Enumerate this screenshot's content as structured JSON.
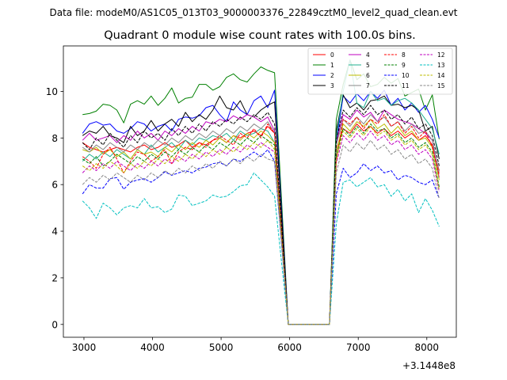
{
  "figure": {
    "suptitle": "Data file: modeM0/AS1C05_013T03_9000003376_22849cztM0_level2_quad_clean.evt"
  },
  "chart_data": {
    "type": "line",
    "title": "Quadrant 0 module wise count rates with 100.0s bins.",
    "xlabel": "",
    "ylabel": "",
    "x_offset_label": "+3.1448e8",
    "xlim": [
      2700,
      8430
    ],
    "ylim": [
      -0.55,
      11.95
    ],
    "xticks": [
      3000,
      4000,
      5000,
      6000,
      7000,
      8000
    ],
    "yticks": [
      0,
      2,
      4,
      6,
      8,
      10
    ],
    "grid": false,
    "legend_position": "top-right",
    "x": [
      2980,
      3080,
      3180,
      3280,
      3380,
      3480,
      3580,
      3680,
      3780,
      3880,
      3980,
      4080,
      4180,
      4280,
      4380,
      4480,
      4580,
      4680,
      4780,
      4880,
      4980,
      5080,
      5180,
      5280,
      5380,
      5480,
      5580,
      5680,
      5780,
      5880,
      5980,
      6080,
      6180,
      6280,
      6380,
      6480,
      6580,
      6680,
      6780,
      6880,
      6980,
      7080,
      7180,
      7280,
      7380,
      7480,
      7580,
      7680,
      7780,
      7880,
      7980,
      8080,
      8180
    ],
    "series": [
      {
        "name": "0",
        "color": "#ff0000",
        "style": "solid",
        "values": [
          7.8,
          7.6,
          7.5,
          7.4,
          7.5,
          7.6,
          7.5,
          7.4,
          7.6,
          7.7,
          7.5,
          7.6,
          7.8,
          7.6,
          7.7,
          7.9,
          7.6,
          7.8,
          7.7,
          7.9,
          8.0,
          7.8,
          8.1,
          8.0,
          8.2,
          8.3,
          8.1,
          8.5,
          8.2,
          4.1,
          0,
          0,
          0,
          0,
          0,
          0,
          0,
          7.5,
          8.4,
          8.2,
          8.6,
          8.3,
          8.5,
          8.2,
          8.4,
          8.1,
          8.3,
          8.0,
          8.2,
          7.9,
          8.1,
          7.7,
          6.6
        ]
      },
      {
        "name": "1",
        "color": "#008000",
        "style": "solid",
        "values": [
          9.0,
          9.05,
          9.15,
          9.45,
          9.4,
          9.2,
          8.65,
          9.45,
          9.6,
          9.45,
          9.8,
          9.4,
          9.7,
          10.15,
          9.5,
          9.7,
          9.75,
          10.3,
          10.3,
          10.05,
          10.2,
          10.6,
          10.75,
          10.5,
          10.4,
          10.75,
          11.05,
          10.9,
          10.8,
          5.4,
          0,
          0,
          0,
          0,
          0,
          0,
          0,
          8.8,
          10.3,
          11.35,
          10.5,
          10.75,
          10.2,
          10.3,
          10.6,
          10.35,
          10.55,
          9.8,
          9.95,
          10.1,
          9.2,
          9.85,
          7.95
        ]
      },
      {
        "name": "2",
        "color": "#0000ff",
        "style": "solid",
        "values": [
          8.2,
          8.6,
          8.7,
          8.55,
          8.6,
          8.3,
          8.2,
          8.4,
          8.7,
          8.6,
          8.3,
          8.5,
          8.6,
          8.3,
          8.8,
          8.9,
          8.85,
          8.95,
          9.3,
          9.4,
          9.0,
          8.7,
          9.55,
          9.2,
          9.0,
          9.6,
          9.8,
          9.3,
          10.05,
          5.0,
          0,
          0,
          0,
          0,
          0,
          0,
          0,
          7.8,
          9.8,
          9.5,
          9.9,
          9.6,
          10.0,
          9.7,
          10.05,
          9.4,
          9.7,
          9.2,
          9.5,
          9.1,
          9.4,
          8.8,
          8.0
        ]
      },
      {
        "name": "3",
        "color": "#000000",
        "style": "solid",
        "values": [
          8.1,
          8.3,
          8.2,
          8.5,
          8.1,
          8.0,
          7.8,
          8.5,
          8.1,
          8.3,
          8.75,
          8.3,
          8.6,
          8.8,
          8.5,
          9.1,
          8.7,
          9.0,
          8.8,
          9.2,
          9.8,
          9.3,
          9.2,
          9.6,
          9.0,
          8.9,
          9.2,
          9.4,
          9.55,
          4.8,
          0,
          0,
          0,
          0,
          0,
          0,
          0,
          8.3,
          9.85,
          9.3,
          9.5,
          9.2,
          9.6,
          9.65,
          9.8,
          9.4,
          9.45,
          9.3,
          9.4,
          9.2,
          8.3,
          8.5,
          7.1
        ]
      },
      {
        "name": "4",
        "color": "#c000c0",
        "style": "solid",
        "values": [
          7.9,
          8.2,
          7.9,
          8.0,
          8.1,
          7.8,
          8.1,
          7.9,
          8.3,
          8.0,
          8.2,
          7.9,
          8.3,
          8.1,
          8.4,
          8.2,
          8.5,
          8.3,
          8.7,
          8.6,
          8.8,
          8.7,
          8.95,
          8.8,
          9.0,
          8.9,
          8.7,
          8.9,
          8.3,
          4.2,
          0,
          0,
          0,
          0,
          0,
          0,
          0,
          7.8,
          9.0,
          8.8,
          9.2,
          8.9,
          9.1,
          8.7,
          9.2,
          9.0,
          8.8,
          8.7,
          8.6,
          8.4,
          8.2,
          7.9,
          6.3
        ]
      },
      {
        "name": "5",
        "color": "#20b090",
        "style": "solid",
        "values": [
          7.0,
          7.3,
          7.1,
          7.4,
          7.2,
          7.5,
          7.3,
          7.1,
          7.5,
          7.3,
          7.7,
          7.4,
          7.6,
          7.8,
          7.5,
          7.9,
          7.7,
          8.0,
          7.9,
          8.1,
          8.0,
          8.2,
          7.9,
          8.3,
          8.1,
          8.2,
          8.4,
          8.3,
          7.8,
          3.9,
          0,
          0,
          0,
          0,
          0,
          0,
          0,
          8.0,
          10.0,
          11.35,
          9.5,
          9.3,
          10.0,
          9.6,
          9.7,
          9.4,
          9.6,
          9.7,
          9.5,
          9.2,
          8.8,
          8.4,
          7.3
        ]
      },
      {
        "name": "6",
        "color": "#bcbc00",
        "style": "solid",
        "values": [
          7.5,
          7.4,
          7.6,
          7.3,
          7.5,
          7.2,
          7.4,
          7.1,
          7.5,
          7.3,
          7.4,
          7.2,
          7.6,
          7.4,
          7.7,
          7.5,
          7.8,
          7.6,
          7.9,
          7.7,
          8.0,
          7.8,
          8.1,
          7.9,
          8.2,
          8.0,
          8.3,
          8.1,
          7.8,
          3.9,
          0,
          0,
          0,
          0,
          0,
          0,
          0,
          7.4,
          8.6,
          8.3,
          8.7,
          8.5,
          8.8,
          8.4,
          8.6,
          8.2,
          8.5,
          8.1,
          8.3,
          7.9,
          8.0,
          7.6,
          6.2
        ]
      },
      {
        "name": "7",
        "color": "#888888",
        "style": "solid",
        "values": [
          7.6,
          7.4,
          7.7,
          7.5,
          7.8,
          7.6,
          7.4,
          7.7,
          7.5,
          7.8,
          7.6,
          7.9,
          7.7,
          8.0,
          7.8,
          8.1,
          7.9,
          8.2,
          8.0,
          8.3,
          8.1,
          8.4,
          8.2,
          8.5,
          8.3,
          8.6,
          8.4,
          8.7,
          8.2,
          4.1,
          0,
          0,
          0,
          0,
          0,
          0,
          0,
          7.7,
          8.8,
          8.5,
          8.9,
          8.6,
          9.0,
          8.7,
          8.9,
          8.5,
          8.7,
          8.3,
          8.6,
          8.2,
          8.3,
          7.9,
          6.5
        ]
      },
      {
        "name": "8",
        "color": "#ff0000",
        "style": "dashed",
        "values": [
          7.2,
          7.0,
          6.7,
          7.3,
          7.6,
          7.1,
          6.5,
          7.0,
          7.4,
          7.3,
          7.0,
          7.2,
          7.5,
          6.9,
          7.4,
          7.6,
          7.5,
          7.8,
          7.6,
          7.9,
          8.1,
          7.9,
          7.7,
          8.2,
          8.0,
          8.4,
          8.0,
          8.6,
          8.2,
          4.1,
          0,
          0,
          0,
          0,
          0,
          0,
          0,
          7.0,
          8.8,
          8.6,
          8.9,
          8.4,
          8.8,
          8.6,
          9.0,
          8.5,
          8.7,
          8.2,
          8.5,
          8.0,
          8.3,
          7.6,
          6.4
        ]
      },
      {
        "name": "9",
        "color": "#008000",
        "style": "dashed",
        "values": [
          7.1,
          6.9,
          7.2,
          6.8,
          7.0,
          7.3,
          7.1,
          6.9,
          7.2,
          7.0,
          7.3,
          7.1,
          7.4,
          7.2,
          7.5,
          7.3,
          7.6,
          7.4,
          7.7,
          7.5,
          7.8,
          7.6,
          7.9,
          7.7,
          8.0,
          7.8,
          8.1,
          7.9,
          7.7,
          3.8,
          0,
          0,
          0,
          0,
          0,
          0,
          0,
          7.2,
          8.4,
          8.1,
          8.5,
          8.2,
          8.6,
          8.3,
          8.4,
          8.0,
          8.2,
          7.8,
          8.0,
          7.6,
          7.8,
          7.4,
          5.9
        ]
      },
      {
        "name": "10",
        "color": "#0000ff",
        "style": "dashed",
        "values": [
          5.6,
          6.0,
          5.85,
          5.85,
          6.25,
          6.3,
          5.8,
          6.1,
          6.2,
          6.25,
          6.1,
          6.3,
          6.55,
          6.4,
          6.5,
          6.6,
          6.5,
          6.7,
          6.75,
          6.9,
          6.95,
          6.8,
          7.1,
          7.0,
          7.2,
          7.4,
          7.2,
          7.5,
          7.0,
          3.5,
          0,
          0,
          0,
          0,
          0,
          0,
          0,
          5.6,
          6.7,
          6.3,
          6.5,
          6.9,
          6.6,
          6.8,
          6.5,
          6.6,
          6.2,
          6.4,
          6.3,
          6.1,
          6.0,
          6.2,
          5.4
        ]
      },
      {
        "name": "11",
        "color": "#000000",
        "style": "dashed",
        "values": [
          7.8,
          7.5,
          8.0,
          7.7,
          8.2,
          7.9,
          7.6,
          8.1,
          7.8,
          8.3,
          8.0,
          8.2,
          7.9,
          8.4,
          8.1,
          8.5,
          8.2,
          8.6,
          8.3,
          8.7,
          8.5,
          8.8,
          8.6,
          8.9,
          8.7,
          9.0,
          8.8,
          9.1,
          8.6,
          4.3,
          0,
          0,
          0,
          0,
          0,
          0,
          0,
          7.9,
          9.2,
          8.9,
          9.3,
          9.0,
          9.4,
          9.0,
          9.2,
          8.8,
          9.0,
          8.6,
          8.9,
          8.4,
          8.6,
          8.1,
          6.8
        ]
      },
      {
        "name": "12",
        "color": "#c000c0",
        "style": "dashed",
        "values": [
          6.5,
          6.8,
          6.6,
          6.9,
          6.7,
          7.0,
          6.8,
          6.6,
          6.9,
          6.7,
          7.0,
          6.8,
          7.1,
          6.9,
          7.2,
          7.0,
          7.3,
          7.1,
          7.4,
          7.2,
          7.5,
          7.3,
          7.6,
          7.4,
          7.7,
          7.5,
          7.8,
          7.6,
          7.4,
          3.7,
          0,
          0,
          0,
          0,
          0,
          0,
          0,
          6.9,
          8.1,
          7.8,
          8.2,
          7.9,
          8.3,
          7.9,
          8.1,
          7.7,
          7.9,
          7.5,
          7.7,
          7.3,
          7.5,
          7.1,
          5.7
        ]
      },
      {
        "name": "13",
        "color": "#00c0c0",
        "style": "dashed",
        "values": [
          5.3,
          5.0,
          4.55,
          5.2,
          5.0,
          4.7,
          5.0,
          5.1,
          5.0,
          5.4,
          5.0,
          5.05,
          4.8,
          4.95,
          5.55,
          5.5,
          5.1,
          5.2,
          5.3,
          5.55,
          5.45,
          5.5,
          5.7,
          5.95,
          6.0,
          6.5,
          6.2,
          5.9,
          5.5,
          2.7,
          0,
          0,
          0,
          0,
          0,
          0,
          0,
          4.3,
          6.1,
          6.2,
          5.9,
          6.1,
          6.3,
          5.9,
          6.0,
          5.5,
          5.8,
          5.3,
          5.6,
          4.8,
          5.4,
          4.9,
          4.2
        ]
      },
      {
        "name": "14",
        "color": "#bcbc00",
        "style": "dashed",
        "values": [
          6.8,
          6.6,
          6.9,
          6.7,
          7.0,
          6.8,
          6.5,
          6.9,
          6.7,
          7.0,
          6.8,
          7.1,
          6.9,
          7.2,
          7.0,
          7.3,
          7.1,
          7.4,
          7.2,
          7.5,
          7.3,
          7.6,
          7.4,
          7.7,
          7.5,
          7.8,
          7.6,
          7.9,
          7.5,
          3.8,
          0,
          0,
          0,
          0,
          0,
          0,
          0,
          7.1,
          8.3,
          8.0,
          8.4,
          8.1,
          8.5,
          8.1,
          8.3,
          7.9,
          8.1,
          7.7,
          7.9,
          7.5,
          7.7,
          7.3,
          5.8
        ]
      },
      {
        "name": "15",
        "color": "#888888",
        "style": "dashed",
        "values": [
          6.0,
          6.3,
          6.1,
          6.4,
          6.2,
          6.5,
          6.3,
          6.1,
          6.4,
          6.2,
          6.5,
          6.3,
          6.6,
          6.4,
          6.7,
          6.5,
          6.8,
          6.6,
          6.9,
          6.7,
          7.0,
          6.8,
          7.1,
          6.9,
          7.2,
          7.0,
          7.3,
          7.1,
          7.0,
          3.5,
          0,
          0,
          0,
          0,
          0,
          0,
          0,
          6.5,
          7.7,
          7.4,
          7.8,
          7.5,
          7.9,
          7.5,
          7.7,
          7.3,
          7.5,
          7.1,
          7.3,
          6.9,
          7.1,
          6.7,
          5.4
        ]
      }
    ]
  }
}
